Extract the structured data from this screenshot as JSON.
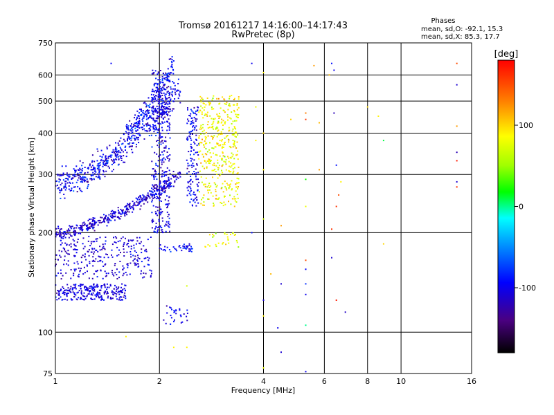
{
  "header": {
    "title_line1": "Tromsø 20161217 14:16:00–14:17:43",
    "title_line2": "RwPretec (8p)",
    "stats_title": "Phases",
    "stats_o": "mean, sd,O: -92.1, 15.3",
    "stats_x": "mean, sd,X:  85.3, 17.7"
  },
  "colorbar": {
    "label": "[deg]",
    "min": -180,
    "max": 180,
    "ticks": [
      {
        "value": 100,
        "label": "100"
      },
      {
        "value": 0,
        "label": "0"
      },
      {
        "value": -100,
        "label": "-100"
      }
    ]
  },
  "chart_data": {
    "type": "scatter",
    "title": "Tromsø 20161217 14:16:00–14:17:43",
    "subtitle": "RwPretec (8p)",
    "xlabel": "Frequency [MHz]",
    "ylabel": "Stationary phase Virtual Height [km]",
    "x_scale": "log",
    "y_scale": "log",
    "xlim": [
      1,
      16
    ],
    "ylim": [
      75,
      750
    ],
    "x_ticks": [
      {
        "v": 1,
        "label": "1"
      },
      {
        "v": 2,
        "label": "2"
      },
      {
        "v": 4,
        "label": "4"
      },
      {
        "v": 6,
        "label": "6"
      },
      {
        "v": 8,
        "label": "8"
      },
      {
        "v": 10,
        "label": "10"
      },
      {
        "v": 16,
        "label": "16"
      }
    ],
    "y_ticks": [
      {
        "v": 75,
        "label": "75"
      },
      {
        "v": 100,
        "label": "100"
      },
      {
        "v": 200,
        "label": "200"
      },
      {
        "v": 300,
        "label": "300"
      },
      {
        "v": 400,
        "label": "400"
      },
      {
        "v": 500,
        "label": "500"
      },
      {
        "v": 600,
        "label": "600"
      },
      {
        "v": 750,
        "label": "750"
      }
    ],
    "grid": true,
    "color_variable": "phase [deg]",
    "clusters": [
      {
        "trace": "o_lower_cusp",
        "f_range": [
          1.0,
          2.3
        ],
        "h_start": 200,
        "h_end": 300,
        "shape": "curve",
        "n": 420,
        "spread": 0.02,
        "phase": -110,
        "phase_sd": 15
      },
      {
        "trace": "o_upper_band",
        "f_range": [
          1.0,
          2.3
        ],
        "h_start": 280,
        "h_end": 550,
        "shape": "curve",
        "n": 520,
        "spread": 0.05,
        "phase": -100,
        "phase_sd": 18
      },
      {
        "trace": "o_top",
        "f_range": [
          1.6,
          2.2
        ],
        "h_start": 420,
        "h_end": 650,
        "shape": "curve",
        "n": 180,
        "spread": 0.04,
        "phase": -95,
        "phase_sd": 15
      },
      {
        "trace": "o_dense_column",
        "f_range": [
          1.9,
          2.15
        ],
        "h_start": 200,
        "h_end": 620,
        "shape": "box",
        "n": 360,
        "spread": 0,
        "phase": -105,
        "phase_sd": 15
      },
      {
        "trace": "o_low_1",
        "f_range": [
          1.0,
          1.6
        ],
        "h_start": 125,
        "h_end": 140,
        "shape": "box",
        "n": 260,
        "spread": 0,
        "phase": -105,
        "phase_sd": 12
      },
      {
        "trace": "o_low_2",
        "f_range": [
          1.0,
          1.9
        ],
        "h_start": 145,
        "h_end": 195,
        "shape": "box",
        "n": 300,
        "spread": 0,
        "phase": -110,
        "phase_sd": 12
      },
      {
        "trace": "o_low_3",
        "f_range": [
          2.0,
          2.5
        ],
        "h_start": 175,
        "h_end": 185,
        "shape": "box",
        "n": 40,
        "spread": 0,
        "phase": -95,
        "phase_sd": 12
      },
      {
        "trace": "o_tail",
        "f_range": [
          2.05,
          2.45
        ],
        "h_start": 105,
        "h_end": 120,
        "shape": "box",
        "n": 30,
        "spread": 0,
        "phase": -100,
        "phase_sd": 12
      },
      {
        "trace": "o_mid_band",
        "f_range": [
          2.4,
          2.6
        ],
        "h_start": 240,
        "h_end": 480,
        "shape": "box",
        "n": 140,
        "spread": 0,
        "phase": -100,
        "phase_sd": 15
      },
      {
        "trace": "x_trace",
        "f_range": [
          2.6,
          3.4
        ],
        "h_start": 240,
        "h_end": 520,
        "shape": "box",
        "n": 420,
        "spread": 0,
        "phase": 85,
        "phase_sd": 18
      },
      {
        "trace": "x_low",
        "f_range": [
          2.7,
          3.4
        ],
        "h_start": 180,
        "h_end": 200,
        "shape": "box",
        "n": 30,
        "spread": 0,
        "phase": 80,
        "phase_sd": 15
      }
    ],
    "sparse_points": [
      {
        "f": 1.45,
        "h": 650,
        "p": -95
      },
      {
        "f": 3.7,
        "h": 650,
        "p": -100
      },
      {
        "f": 4.0,
        "h": 610,
        "p": 90
      },
      {
        "f": 5.6,
        "h": 640,
        "p": 120
      },
      {
        "f": 6.3,
        "h": 650,
        "p": -90
      },
      {
        "f": 6.4,
        "h": 620,
        "p": -100
      },
      {
        "f": 6.2,
        "h": 600,
        "p": 110
      },
      {
        "f": 14.5,
        "h": 650,
        "p": 150
      },
      {
        "f": 14.5,
        "h": 560,
        "p": -110
      },
      {
        "f": 5.3,
        "h": 460,
        "p": 130
      },
      {
        "f": 5.3,
        "h": 440,
        "p": 160
      },
      {
        "f": 4.8,
        "h": 440,
        "p": 100
      },
      {
        "f": 5.8,
        "h": 430,
        "p": 110
      },
      {
        "f": 6.4,
        "h": 460,
        "p": -120
      },
      {
        "f": 8.0,
        "h": 480,
        "p": 100
      },
      {
        "f": 8.6,
        "h": 450,
        "p": 90
      },
      {
        "f": 8.9,
        "h": 380,
        "p": 10
      },
      {
        "f": 14.5,
        "h": 420,
        "p": 120
      },
      {
        "f": 14.5,
        "h": 350,
        "p": -120
      },
      {
        "f": 14.5,
        "h": 330,
        "p": 170
      },
      {
        "f": 6.5,
        "h": 320,
        "p": -90
      },
      {
        "f": 5.8,
        "h": 310,
        "p": 120
      },
      {
        "f": 6.7,
        "h": 285,
        "p": 90
      },
      {
        "f": 5.3,
        "h": 290,
        "p": 20
      },
      {
        "f": 6.6,
        "h": 260,
        "p": 150
      },
      {
        "f": 6.5,
        "h": 240,
        "p": 160
      },
      {
        "f": 5.3,
        "h": 240,
        "p": 80
      },
      {
        "f": 14.5,
        "h": 285,
        "p": -110
      },
      {
        "f": 14.5,
        "h": 275,
        "p": 160
      },
      {
        "f": 4.0,
        "h": 310,
        "p": 90
      },
      {
        "f": 4.0,
        "h": 220,
        "p": 70
      },
      {
        "f": 4.5,
        "h": 210,
        "p": 120
      },
      {
        "f": 6.3,
        "h": 205,
        "p": 160
      },
      {
        "f": 3.7,
        "h": 200,
        "p": -90
      },
      {
        "f": 8.9,
        "h": 185,
        "p": 100
      },
      {
        "f": 6.3,
        "h": 168,
        "p": -110
      },
      {
        "f": 5.3,
        "h": 165,
        "p": 150
      },
      {
        "f": 5.3,
        "h": 155,
        "p": -95
      },
      {
        "f": 4.2,
        "h": 150,
        "p": 110
      },
      {
        "f": 4.5,
        "h": 140,
        "p": -110
      },
      {
        "f": 5.3,
        "h": 140,
        "p": -80
      },
      {
        "f": 5.3,
        "h": 130,
        "p": -100
      },
      {
        "f": 4.0,
        "h": 125,
        "p": -110
      },
      {
        "f": 6.5,
        "h": 125,
        "p": 170
      },
      {
        "f": 6.9,
        "h": 115,
        "p": -115
      },
      {
        "f": 4.0,
        "h": 112,
        "p": 90
      },
      {
        "f": 4.4,
        "h": 103,
        "p": -100
      },
      {
        "f": 5.3,
        "h": 105,
        "p": 0
      },
      {
        "f": 4.5,
        "h": 87,
        "p": -110
      },
      {
        "f": 4.0,
        "h": 78,
        "p": 80
      },
      {
        "f": 5.3,
        "h": 76,
        "p": -100
      },
      {
        "f": 2.4,
        "h": 138,
        "p": 70
      },
      {
        "f": 2.2,
        "h": 90,
        "p": 90
      },
      {
        "f": 2.4,
        "h": 90,
        "p": 90
      },
      {
        "f": 1.6,
        "h": 97,
        "p": 90
      },
      {
        "f": 3.8,
        "h": 480,
        "p": 80
      },
      {
        "f": 4.0,
        "h": 400,
        "p": 100
      },
      {
        "f": 3.8,
        "h": 380,
        "p": 90
      }
    ]
  }
}
